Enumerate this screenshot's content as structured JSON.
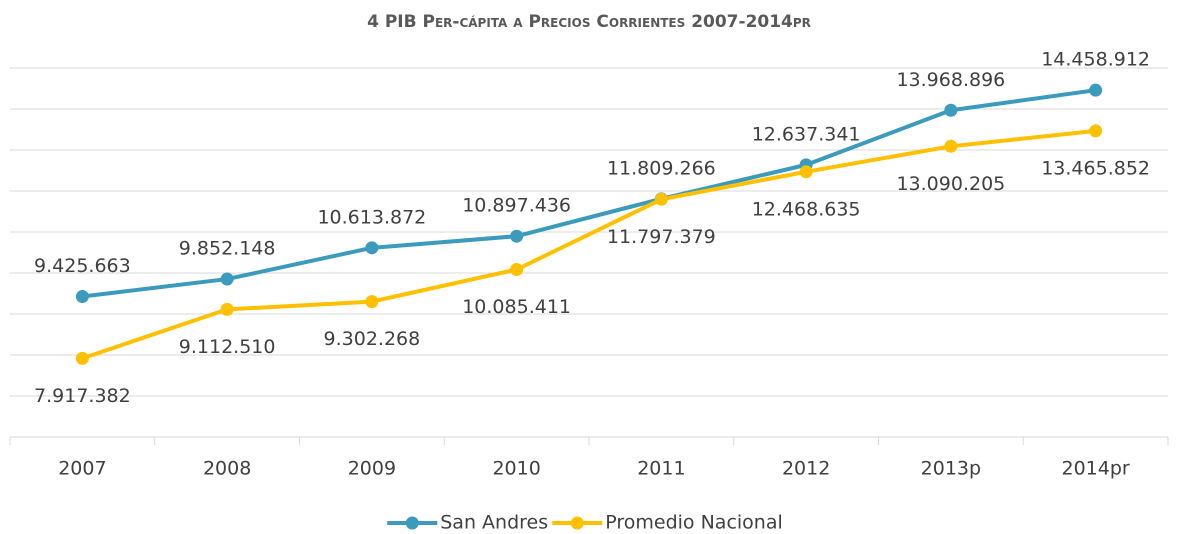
{
  "chart_data": {
    "type": "line",
    "title": "4 PIB Per-cápita a Precios Corrientes 2007-2014pr",
    "categories": [
      "2007",
      "2008",
      "2009",
      "2010",
      "2011",
      "2012",
      "2013p",
      "2014pr"
    ],
    "series": [
      {
        "name": "San Andres",
        "color": "#3a9bbd",
        "values": [
          9425663,
          9852148,
          10613872,
          10897436,
          11809266,
          12637341,
          13968896,
          14458912
        ],
        "value_labels": [
          "9.425.663",
          "9.852.148",
          "10.613.872",
          "10.897.436",
          "11.809.266",
          "12.637.341",
          "13.968.896",
          "14.458.912"
        ]
      },
      {
        "name": "Promedio Nacional",
        "color": "#ffc000",
        "values": [
          7917382,
          9112510,
          9302268,
          10085411,
          11797379,
          12468635,
          13090205,
          13465852
        ],
        "value_labels": [
          "7.917.382",
          "9.112.510",
          "9.302.268",
          "10.085.411",
          "11.797.379",
          "12.468.635",
          "13.090.205",
          "13.465.852"
        ]
      }
    ],
    "ylim": [
      6000000,
      15000000
    ],
    "yticks": [
      6000000,
      7000000,
      8000000,
      9000000,
      10000000,
      11000000,
      12000000,
      13000000,
      14000000,
      15000000
    ],
    "grid": true,
    "legend": "bottom"
  }
}
